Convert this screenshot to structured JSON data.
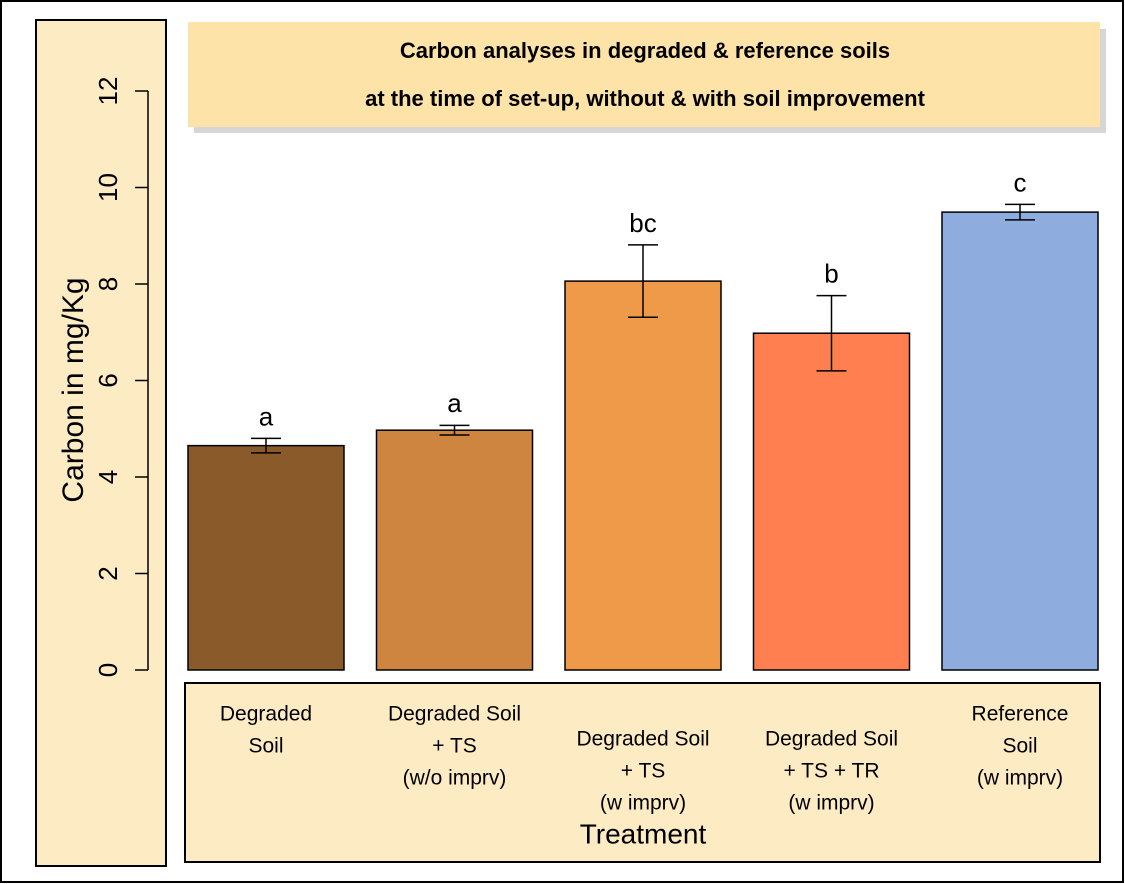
{
  "chart_data": {
    "type": "bar",
    "title": [
      "Carbon analyses in degraded & reference soils",
      "at the time of set-up, without & with soil improvement"
    ],
    "y_label": "Carbon in mg/Kg",
    "x_label": "Treatment",
    "categories": [
      [
        "Degraded",
        "Soil"
      ],
      [
        "Degraded Soil",
        "+ TS",
        "(w/o imprv)"
      ],
      [
        "Degraded Soil",
        "+ TS",
        "(w imprv)"
      ],
      [
        "Degraded Soil",
        "+ TS + TR",
        "(w imprv)"
      ],
      [
        "Reference",
        "Soil",
        "(w imprv)"
      ]
    ],
    "values": [
      4.65,
      4.97,
      8.06,
      6.98,
      9.49
    ],
    "errors": [
      0.15,
      0.1,
      0.75,
      0.78,
      0.16
    ],
    "letters": [
      "a",
      "a",
      "bc",
      "b",
      "c"
    ],
    "colors": [
      "#8b5a2b",
      "#cd853f",
      "#ee9a49",
      "#ff7f50",
      "#8eacde"
    ],
    "ylim": [
      0,
      12
    ],
    "yticks": [
      0,
      2,
      4,
      6,
      8,
      10,
      12
    ]
  }
}
